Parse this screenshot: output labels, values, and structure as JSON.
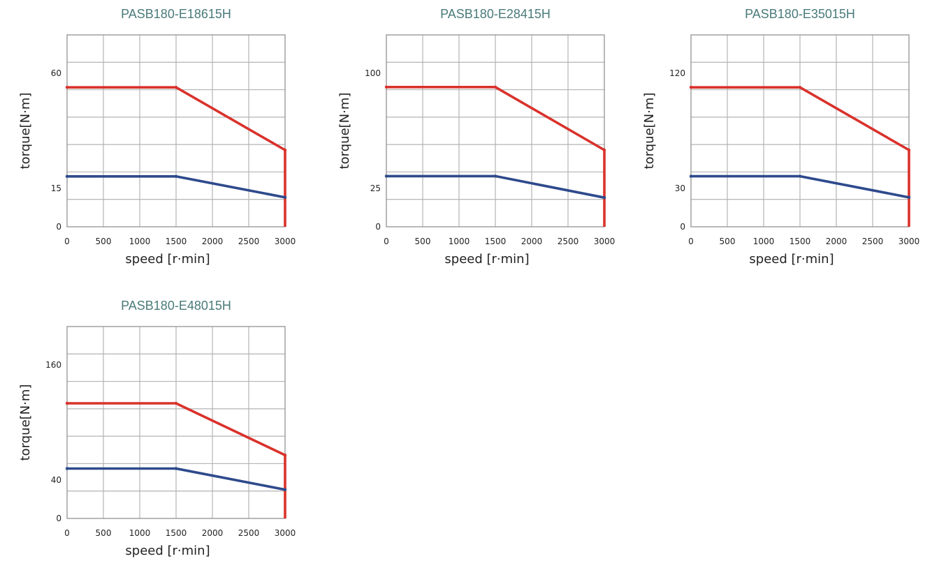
{
  "colors": {
    "peak": "#d9322b",
    "continuous": "#2e4a8c",
    "title": "#4a7a7a",
    "grid": "#b3b3b3"
  },
  "chart_data": [
    {
      "type": "line",
      "title": "PASB180-E18615H",
      "xlabel": "speed [r·min]",
      "ylabel": "torque[N·m]",
      "xlim": [
        0,
        3000
      ],
      "ylim": [
        0,
        75
      ],
      "x_ticks": [
        "0",
        "500",
        "1000",
        "1500",
        "2000",
        "2500",
        "3000"
      ],
      "y_ticks": [
        {
          "value": 0,
          "label": "0"
        },
        {
          "value": 15,
          "label": "15"
        },
        {
          "value": 60,
          "label": "60"
        }
      ],
      "grid": true,
      "series": [
        {
          "key": "peak",
          "x": [
            0,
            1500,
            3000,
            3000
          ],
          "y": [
            54.5,
            54.5,
            30,
            0
          ]
        },
        {
          "key": "continuous",
          "x": [
            0,
            1500,
            3000
          ],
          "y": [
            19.7,
            19.7,
            11.5
          ]
        }
      ]
    },
    {
      "type": "line",
      "title": "PASB180-E28415H",
      "xlabel": "speed [r·min]",
      "ylabel": "torque[N·m]",
      "xlim": [
        0,
        3000
      ],
      "ylim": [
        0,
        125
      ],
      "x_ticks": [
        "0",
        "500",
        "1000",
        "1500",
        "2000",
        "2500",
        "3000"
      ],
      "y_ticks": [
        {
          "value": 0,
          "label": "0"
        },
        {
          "value": 25,
          "label": "25"
        },
        {
          "value": 100,
          "label": "100"
        }
      ],
      "grid": true,
      "series": [
        {
          "key": "peak",
          "x": [
            0,
            1500,
            3000,
            3000
          ],
          "y": [
            91,
            91,
            50,
            0
          ]
        },
        {
          "key": "continuous",
          "x": [
            0,
            1500,
            3000
          ],
          "y": [
            33,
            33,
            19
          ]
        }
      ]
    },
    {
      "type": "line",
      "title": "PASB180-E35015H",
      "xlabel": "speed [r·min]",
      "ylabel": "torque[N·m]",
      "xlim": [
        0,
        3000
      ],
      "ylim": [
        0,
        150
      ],
      "x_ticks": [
        "0",
        "500",
        "1000",
        "1500",
        "2000",
        "2500",
        "3000"
      ],
      "y_ticks": [
        {
          "value": 0,
          "label": "0"
        },
        {
          "value": 30,
          "label": "30"
        },
        {
          "value": 120,
          "label": "120"
        }
      ],
      "grid": true,
      "series": [
        {
          "key": "peak",
          "x": [
            0,
            1500,
            3000,
            3000
          ],
          "y": [
            109,
            109,
            60,
            0
          ]
        },
        {
          "key": "continuous",
          "x": [
            0,
            1500,
            3000
          ],
          "y": [
            39.5,
            39.5,
            23
          ]
        }
      ]
    },
    {
      "type": "line",
      "title": "PASB180-E48015H",
      "xlabel": "speed [r·min]",
      "ylabel": "torque[N·m]",
      "xlim": [
        0,
        3000
      ],
      "ylim": [
        0,
        200
      ],
      "x_ticks": [
        "0",
        "500",
        "1000",
        "1500",
        "2000",
        "2500",
        "3000"
      ],
      "y_ticks": [
        {
          "value": 0,
          "label": "0"
        },
        {
          "value": 40,
          "label": "40"
        },
        {
          "value": 160,
          "label": "160"
        }
      ],
      "grid": true,
      "series": [
        {
          "key": "peak",
          "x": [
            0,
            1500,
            3000,
            3000
          ],
          "y": [
            120,
            120,
            66,
            0
          ]
        },
        {
          "key": "continuous",
          "x": [
            0,
            1500,
            3000
          ],
          "y": [
            52,
            52,
            30
          ]
        }
      ]
    }
  ]
}
